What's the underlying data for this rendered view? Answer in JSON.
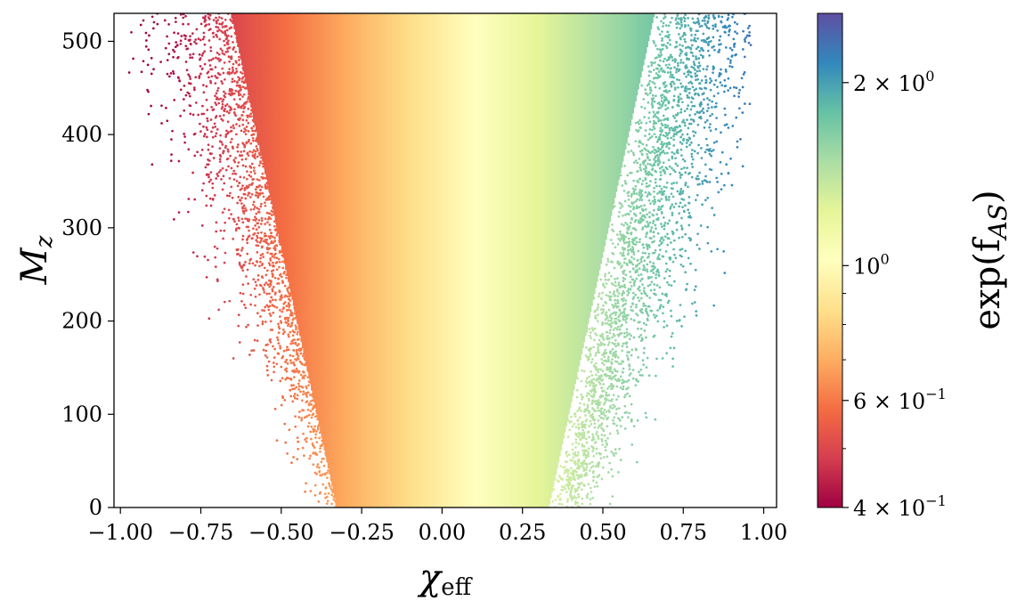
{
  "chart_data": {
    "type": "scatter",
    "title": "",
    "xlabel": "χ",
    "xlabel_subscript": "eff",
    "ylabel": "M",
    "ylabel_subscript": "z",
    "xlim": [
      -1.02,
      1.04
    ],
    "ylim": [
      0,
      530
    ],
    "grid": false,
    "legend": "none",
    "x_ticks": [
      -1.0,
      -0.75,
      -0.5,
      -0.25,
      0.0,
      0.25,
      0.5,
      0.75,
      1.0
    ],
    "x_tick_labels": [
      "−1.00",
      "−0.75",
      "−0.50",
      "−0.25",
      "0.00",
      "0.25",
      "0.50",
      "0.75",
      "1.00"
    ],
    "y_ticks": [
      0,
      100,
      200,
      300,
      400,
      500
    ],
    "y_tick_labels": [
      "0",
      "100",
      "200",
      "300",
      "400",
      "500"
    ],
    "colorbar": {
      "label": "exp(f",
      "label_subscript": "AS",
      "label_close": ")",
      "scale": "log",
      "colormap": "Spectral",
      "range": [
        0.4,
        2.6
      ],
      "ticks": [
        {
          "value": 0.4,
          "mantissa": "4 × 10",
          "exp": "−1"
        },
        {
          "value": 0.6,
          "mantissa": "6 × 10",
          "exp": "−1"
        },
        {
          "value": 1.0,
          "mantissa": "10",
          "exp": "0"
        },
        {
          "value": 2.0,
          "mantissa": "2 × 10",
          "exp": "0"
        }
      ],
      "minor_ticks": [
        0.5,
        0.7,
        0.8,
        0.9
      ]
    },
    "description_points": "dense cloud of ~100k samples; color ~ exp(f_AS) increases with chi_eff (orange-red at negative, yellow near 0.1, green-blue at positive); spread in chi_eff widens with M_z"
  }
}
